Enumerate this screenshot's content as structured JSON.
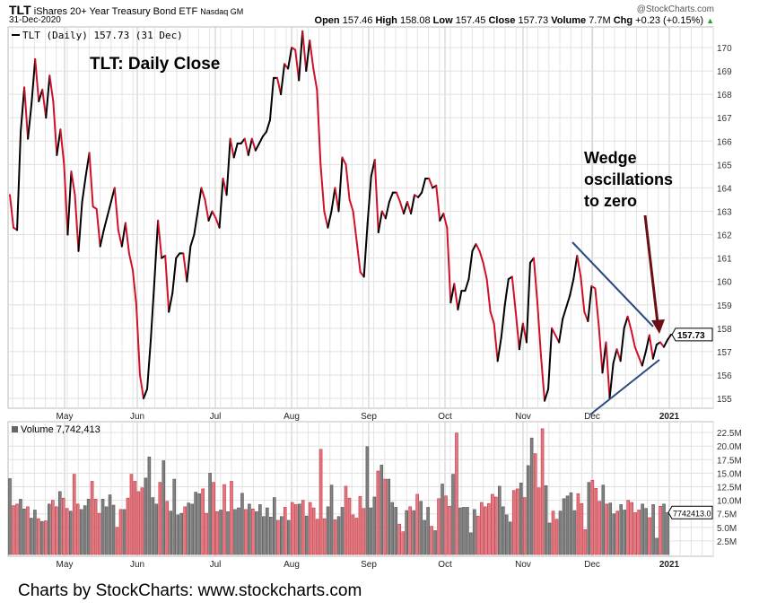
{
  "header": {
    "symbol": "TLT",
    "name": "iShares 20+ Year Treasury Bond ETF",
    "exchange": "Nasdaq GM",
    "date": "31-Dec-2020",
    "copyright": "@StockCharts.com",
    "open_label": "Open",
    "open": "157.46",
    "high_label": "High",
    "high": "158.08",
    "low_label": "Low",
    "low": "157.45",
    "close_label": "Close",
    "close": "157.73",
    "volume_label": "Volume",
    "volume": "7.7M",
    "chg_label": "Chg",
    "chg": "+0.23 (+0.15%)"
  },
  "colors": {
    "up": "#000000",
    "down": "#d0102a",
    "vol_up": "#808080",
    "vol_down": "#e07a80",
    "wedge": "#2a4a80",
    "arrow": "#6b0f14"
  },
  "chart_data": {
    "type": "line",
    "title": "TLT:  Daily Close",
    "legend": "TLT (Daily) 157.73 (31 Dec)",
    "last_value_tag": "157.73",
    "ylim": [
      155,
      170
    ],
    "y_ticks": [
      "155",
      "156",
      "157",
      "158",
      "159",
      "160",
      "161",
      "162",
      "163",
      "164",
      "165",
      "166",
      "167",
      "168",
      "169",
      "170"
    ],
    "x_ticks": [
      "May",
      "Jun",
      "Jul",
      "Aug",
      "Sep",
      "Oct",
      "Nov",
      "Dec",
      "2021"
    ],
    "annotation": [
      "Wedge",
      "oscillations",
      "to zero"
    ],
    "close": [
      163.7,
      162.3,
      162.2,
      166.4,
      168.3,
      166.1,
      167.6,
      169.5,
      167.7,
      168.2,
      167.0,
      168.8,
      167.7,
      165.4,
      166.5,
      165.0,
      162.0,
      164.7,
      163.7,
      161.3,
      163.4,
      164.5,
      165.5,
      163.2,
      163.1,
      161.5,
      162.2,
      162.8,
      163.4,
      164.0,
      162.2,
      161.5,
      162.5,
      161.2,
      160.5,
      159.0,
      156.0,
      155.0,
      155.4,
      157.5,
      160.0,
      162.6,
      161.0,
      161.1,
      158.7,
      159.5,
      161.0,
      161.2,
      161.2,
      160.0,
      161.5,
      162.0,
      163.0,
      164.0,
      163.5,
      162.6,
      163.0,
      162.7,
      162.3,
      164.4,
      163.7,
      166.1,
      165.3,
      165.9,
      165.9,
      166.1,
      165.4,
      166.1,
      165.6,
      165.9,
      166.2,
      166.4,
      166.9,
      168.7,
      168.7,
      168.0,
      169.3,
      169.1,
      170.0,
      169.9,
      168.6,
      170.7,
      169.0,
      170.3,
      169.1,
      168.2,
      165.0,
      163.0,
      162.3,
      163.0,
      164.0,
      163.0,
      165.3,
      165.0,
      163.5,
      163.0,
      161.7,
      160.4,
      160.2,
      162.5,
      164.5,
      165.2,
      162.1,
      163.0,
      162.7,
      163.4,
      163.8,
      163.8,
      163.4,
      162.9,
      163.4,
      162.9,
      163.7,
      163.6,
      163.8,
      164.4,
      164.4,
      164.0,
      164.1,
      162.6,
      162.9,
      162.3,
      159.1,
      159.9,
      158.8,
      159.6,
      159.6,
      160.1,
      161.3,
      161.6,
      161.3,
      160.8,
      160.1,
      158.7,
      158.2,
      156.6,
      157.6,
      159.0,
      160.1,
      160.2,
      158.7,
      157.1,
      158.2,
      157.4,
      160.8,
      161.0,
      159.1,
      156.8,
      154.9,
      155.4,
      158.0,
      157.7,
      157.4,
      158.4,
      158.9,
      159.4,
      160.1,
      161.1,
      160.2,
      158.7,
      158.3,
      159.8,
      159.7,
      158.1,
      156.1,
      157.4,
      155.0,
      156.5,
      157.1,
      156.6,
      158.0,
      158.5,
      157.9,
      157.2,
      156.8,
      156.4,
      157.0,
      157.7,
      156.7,
      157.3,
      157.4,
      157.2,
      157.5,
      157.73
    ],
    "volume": {
      "label": "Volume 7,742,413",
      "last_tag": "7742413.0",
      "ylim": [
        0,
        24
      ],
      "y_ticks": [
        "2.5M",
        "5.0M",
        "7.5M",
        "10.0M",
        "12.5M",
        "15.0M",
        "17.5M",
        "20.0M",
        "22.5M"
      ],
      "values_millions": [
        14,
        9,
        9.3,
        10.2,
        8.4,
        8.8,
        6.7,
        8.2,
        6.6,
        6.1,
        6.2,
        9.3,
        10,
        8.8,
        11.6,
        10.4,
        8.5,
        8,
        14.8,
        9.3,
        8.3,
        9,
        10.2,
        13.5,
        10.2,
        7.6,
        10.2,
        8.8,
        11,
        9.1,
        5,
        8.3,
        8.3,
        10.4,
        14.8,
        13.5,
        11.6,
        12.3,
        14.1,
        18,
        10.5,
        9.3,
        13.3,
        17.3,
        9.8,
        8,
        13.9,
        7.3,
        7.6,
        8.8,
        9.5,
        9.3,
        11.5,
        11.2,
        12.1,
        7.6,
        15,
        13.3,
        7.9,
        8.2,
        12.9,
        7.9,
        13.5,
        8.3,
        8.6,
        11.3,
        8.3,
        9.3,
        8.4,
        7.9,
        9.2,
        7,
        8.6,
        6.9,
        10.5,
        6.3,
        7,
        8.7,
        6.3,
        9.6,
        9.2,
        9.3,
        10,
        7.1,
        9.6,
        8.6,
        6.5,
        19.4,
        6.6,
        8.8,
        12.8,
        6.4,
        7,
        8.7,
        12.6,
        10.4,
        7.3,
        6.7,
        10.7,
        8.5,
        19.9,
        8.6,
        10.6,
        15.4,
        16.5,
        13.9,
        13.9,
        9.6,
        8.7,
        5.6,
        4.2,
        8.1,
        8.8,
        8.1,
        11.1,
        9.8,
        6.3,
        8.7,
        5.2,
        4.4,
        10.3,
        13,
        10.8,
        8.9,
        14.8,
        22.4,
        8.6,
        8.7,
        8.7,
        4,
        8.3,
        7.1,
        9.6,
        8.8,
        9.4,
        11.1,
        10.6,
        12.6,
        8.8,
        7.3,
        6,
        11.8,
        12.1,
        13.2,
        10.5,
        16.4,
        21.5,
        18.6,
        12.3,
        23.2,
        12.7,
        5.8,
        8,
        6.5,
        8,
        10.3,
        10.8,
        11.4,
        8.1,
        11.2,
        9.4,
        4.6,
        13.3,
        13.7,
        12.2,
        9.8,
        12.8,
        9.3,
        9.5,
        7.5,
        8,
        9.2,
        8.2,
        10,
        9.6,
        7.7,
        8.2,
        9.3,
        8.5,
        6.8,
        9.2,
        3,
        8.9,
        9.3,
        7.74
      ]
    }
  },
  "footer": "Charts by StockCharts:  www.stockcharts.com"
}
